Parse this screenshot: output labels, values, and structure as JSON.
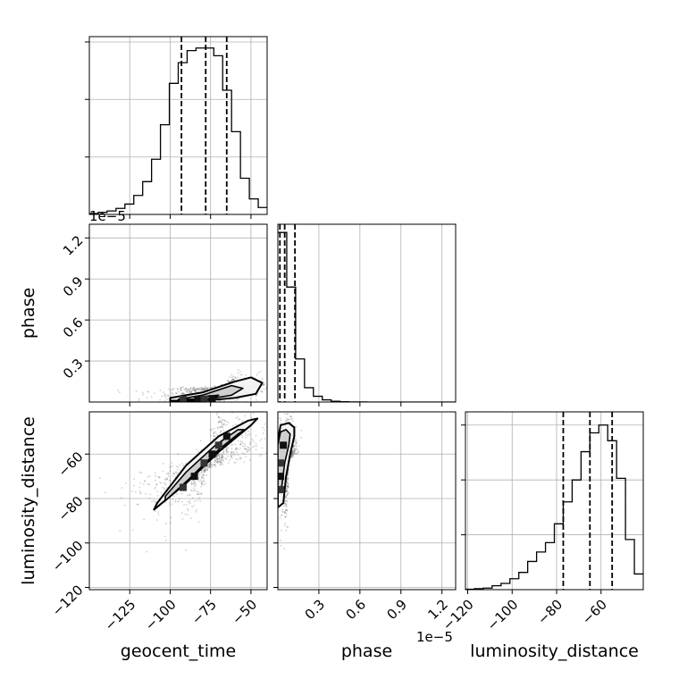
{
  "chart_data": {
    "type": "corner",
    "grid": true,
    "parameters": [
      "geocent_time",
      "phase",
      "luminosity_distance"
    ],
    "offset_text": "1e−5",
    "axes": {
      "geocent_time": {
        "range": [
          -150,
          -40
        ],
        "ticks": [
          -125,
          -100,
          -75,
          -50
        ],
        "tick_labels": [
          "−125",
          "−100",
          "−75",
          "−50"
        ]
      },
      "phase": {
        "range": [
          0,
          1.3
        ],
        "ticks": [
          0.3,
          0.6,
          0.9,
          1.2
        ],
        "tick_labels": [
          "0.3",
          "0.6",
          "0.9",
          "1.2"
        ]
      },
      "luminosity_distance": {
        "range": [
          -121,
          -41
        ],
        "ticks": [
          -120,
          -100,
          -80,
          -60
        ],
        "tick_labels": [
          "−120",
          "−100",
          "−80",
          "−60"
        ]
      }
    },
    "histograms": [
      {
        "parameter": "geocent_time",
        "bin_edges": [
          -150,
          -144.5,
          -139,
          -133.5,
          -128,
          -122.5,
          -117,
          -111.5,
          -106,
          -100.5,
          -95,
          -89.5,
          -84,
          -78.5,
          -73,
          -67.5,
          -62,
          -56.5,
          -51,
          -45.5,
          -40
        ],
        "counts": [
          5,
          12,
          20,
          35,
          60,
          110,
          190,
          320,
          520,
          760,
          880,
          950,
          965,
          965,
          920,
          720,
          480,
          210,
          90,
          40
        ],
        "ylim": [
          0,
          1000
        ],
        "y_ticks": [
          333,
          667,
          1000
        ],
        "quantiles": [
          -93,
          -78,
          -65
        ]
      },
      {
        "parameter": "phase",
        "bin_edges": [
          0,
          0.065,
          0.13,
          0.195,
          0.26,
          0.325,
          0.39,
          0.455,
          0.52,
          0.585,
          0.65,
          0.715,
          0.78,
          0.845,
          0.91,
          0.975,
          1.04,
          1.105,
          1.17,
          1.235,
          1.3
        ],
        "counts": [
          1180,
          800,
          300,
          100,
          40,
          15,
          5,
          2,
          1,
          1,
          0,
          0,
          0,
          0,
          0,
          0,
          0,
          0,
          0,
          0
        ],
        "ylim": [
          0,
          1200
        ],
        "y_ticks": [],
        "quantiles": [
          0.015,
          0.05,
          0.125
        ]
      },
      {
        "parameter": "luminosity_distance",
        "bin_edges": [
          -121,
          -117,
          -113,
          -109,
          -105,
          -101,
          -97,
          -93,
          -89,
          -85,
          -81,
          -77,
          -73,
          -69,
          -65,
          -61,
          -57,
          -53,
          -49,
          -45,
          -41
        ],
        "counts": [
          3,
          6,
          10,
          25,
          40,
          70,
          110,
          180,
          240,
          300,
          420,
          560,
          700,
          880,
          1000,
          1050,
          950,
          710,
          320,
          100
        ],
        "ylim": [
          0,
          1100
        ],
        "y_ticks": [
          350,
          700,
          1050
        ],
        "quantiles": [
          -77,
          -65,
          -55
        ]
      }
    ],
    "density_2d": [
      {
        "x": "geocent_time",
        "y": "phase",
        "scatter_center": [
          -65,
          0.12
        ],
        "contour_levels": [
          [
            [
              -100,
              0.01
            ],
            [
              -80,
              0.01
            ],
            [
              -60,
              0.03
            ],
            [
              -47,
              0.06
            ],
            [
              -43,
              0.14
            ],
            [
              -50,
              0.18
            ],
            [
              -60,
              0.15
            ],
            [
              -80,
              0.07
            ],
            [
              -100,
              0.03
            ]
          ],
          [
            [
              -95,
              0.02
            ],
            [
              -78,
              0.02
            ],
            [
              -62,
              0.05
            ],
            [
              -55,
              0.1
            ],
            [
              -62,
              0.12
            ],
            [
              -80,
              0.05
            ]
          ],
          [
            [
              -85,
              0.02
            ],
            [
              -73,
              0.025
            ],
            [
              -70,
              0.05
            ],
            [
              -80,
              0.04
            ]
          ]
        ],
        "dense_cells": [
          [
            -92,
            0.02
          ],
          [
            -83,
            0.02
          ],
          [
            -79,
            0.02
          ],
          [
            -74,
            0.025
          ]
        ]
      },
      {
        "x": "geocent_time",
        "y": "luminosity_distance",
        "scatter_center": [
          -75,
          -67
        ],
        "contour_levels": [
          [
            [
              -110,
              -85
            ],
            [
              -90,
              -73
            ],
            [
              -70,
              -59
            ],
            [
              -50,
              -47
            ],
            [
              -46,
              -44
            ],
            [
              -52,
              -45
            ],
            [
              -70,
              -52
            ],
            [
              -90,
              -65
            ],
            [
              -108,
              -82
            ]
          ],
          [
            [
              -103,
              -81
            ],
            [
              -88,
              -71
            ],
            [
              -70,
              -58
            ],
            [
              -58,
              -51
            ],
            [
              -54,
              -49
            ],
            [
              -58,
              -49
            ],
            [
              -72,
              -56
            ],
            [
              -90,
              -68
            ],
            [
              -103,
              -79
            ]
          ]
        ],
        "dense_cells": [
          [
            -92,
            -75
          ],
          [
            -85,
            -70
          ],
          [
            -79,
            -64
          ],
          [
            -74,
            -60
          ],
          [
            -70,
            -56
          ],
          [
            -65,
            -52
          ]
        ]
      },
      {
        "x": "phase",
        "y": "luminosity_distance",
        "scatter_center": [
          0.08,
          -62
        ],
        "contour_levels": [
          [
            [
              0.0,
              -84
            ],
            [
              0.04,
              -82
            ],
            [
              0.06,
              -70
            ],
            [
              0.09,
              -60
            ],
            [
              0.12,
              -52
            ],
            [
              0.12,
              -48
            ],
            [
              0.08,
              -46
            ],
            [
              0.02,
              -47
            ],
            [
              0.0,
              -54
            ]
          ],
          [
            [
              0.0,
              -78
            ],
            [
              0.03,
              -74
            ],
            [
              0.05,
              -64
            ],
            [
              0.08,
              -56
            ],
            [
              0.09,
              -51
            ],
            [
              0.06,
              -49
            ],
            [
              0.02,
              -50
            ],
            [
              0.0,
              -56
            ]
          ]
        ],
        "dense_cells": [
          [
            0.02,
            -64
          ],
          [
            0.02,
            -70
          ],
          [
            0.02,
            -76
          ],
          [
            0.04,
            -56
          ]
        ]
      }
    ]
  }
}
